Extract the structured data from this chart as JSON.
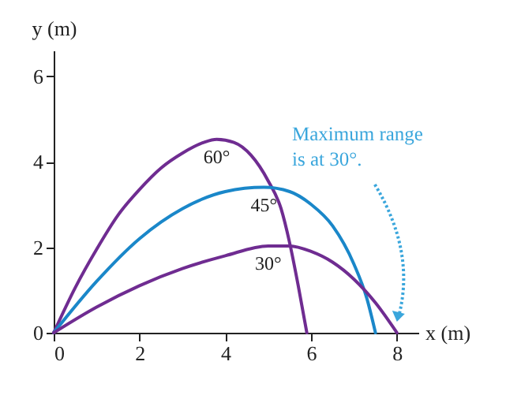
{
  "chart_data": {
    "type": "line",
    "xlabel": "x (m)",
    "ylabel": "y (m)",
    "xlim": [
      0,
      8.5
    ],
    "xticks": [
      0,
      2,
      4,
      6,
      8
    ],
    "ylim": [
      0,
      6.6
    ],
    "yticks": [
      0,
      2,
      4,
      6
    ],
    "series": [
      {
        "name": "60°",
        "color": "#6f2c91",
        "x": [
          0,
          0.5,
          1,
          1.5,
          2,
          2.5,
          3,
          3.5,
          3.8,
          4.2,
          4.6,
          5,
          5.3,
          5.5,
          5.7,
          5.9
        ],
        "values": [
          0,
          1.05,
          1.95,
          2.75,
          3.35,
          3.85,
          4.2,
          4.45,
          4.52,
          4.45,
          4.15,
          3.55,
          2.9,
          2.1,
          1.1,
          0
        ]
      },
      {
        "name": "45°",
        "color": "#1a87c9",
        "x": [
          0,
          1,
          2,
          3,
          4,
          4.9,
          5.5,
          6,
          6.5,
          7,
          7.3,
          7.5
        ],
        "values": [
          0,
          1.2,
          2.2,
          2.9,
          3.3,
          3.4,
          3.3,
          3.0,
          2.5,
          1.6,
          0.8,
          0
        ]
      },
      {
        "name": "30°",
        "color": "#6f2c91",
        "x": [
          0,
          1,
          2,
          3,
          4,
          5,
          5.5,
          6,
          6.5,
          7,
          7.5,
          8
        ],
        "values": [
          0,
          0.6,
          1.1,
          1.5,
          1.8,
          2.03,
          2.03,
          1.9,
          1.65,
          1.25,
          0.7,
          0
        ]
      }
    ],
    "annotations": [
      "Maximum range\nis at 30°."
    ]
  }
}
